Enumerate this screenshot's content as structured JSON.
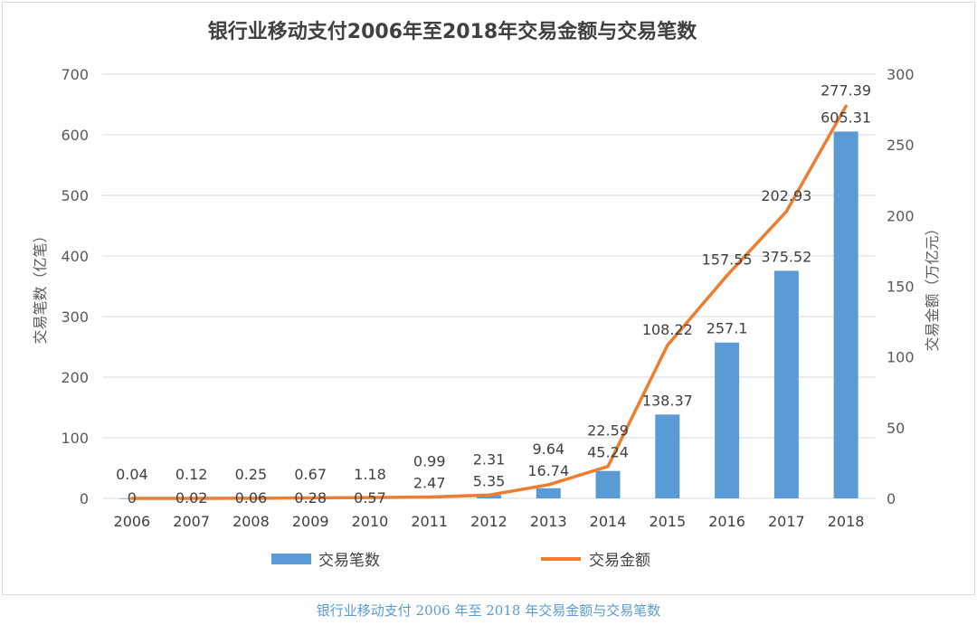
{
  "caption": "银行业移动支付 2006 年至 2018 年交易金额与交易笔数",
  "chart_data": {
    "type": "bar",
    "title": "银行业移动支付2006年至2018年交易金额与交易笔数",
    "categories": [
      "2006",
      "2007",
      "2008",
      "2009",
      "2010",
      "2011",
      "2012",
      "2013",
      "2014",
      "2015",
      "2016",
      "2017",
      "2018"
    ],
    "ylabel": "交易笔数（亿笔）",
    "y2label": "交易金额（万亿元）",
    "ylim": [
      0,
      700
    ],
    "y2lim": [
      0,
      300
    ],
    "yticks": [
      "0",
      "100",
      "200",
      "300",
      "400",
      "500",
      "600",
      "700"
    ],
    "y2ticks": [
      "0",
      "50",
      "100",
      "150",
      "200",
      "250",
      "300"
    ],
    "grid": true,
    "legend_position": "bottom",
    "series": [
      {
        "name": "交易笔数",
        "type": "bar",
        "axis": "left",
        "color": "#5b9bd5",
        "values": [
          0.04,
          0.12,
          0.25,
          0.67,
          1.18,
          2.47,
          5.35,
          16.74,
          45.24,
          138.37,
          257.1,
          375.52,
          605.31
        ],
        "labels": [
          "0.04",
          "0.12",
          "0.25",
          "0.67",
          "1.18",
          "2.47",
          "5.35",
          "16.74",
          "45.24",
          "138.37",
          "257.1",
          "375.52",
          "605.31"
        ]
      },
      {
        "name": "交易金额",
        "type": "line",
        "axis": "right",
        "color": "#ed7d31",
        "values": [
          0,
          0.02,
          0.06,
          0.28,
          0.57,
          0.99,
          2.31,
          9.64,
          22.59,
          108.22,
          157.55,
          202.93,
          277.39
        ],
        "labels": [
          "0",
          "0.02",
          "0.06",
          "0.28",
          "0.57",
          "0.99",
          "2.31",
          "9.64",
          "22.59",
          "108.22",
          "157.55",
          "202.93",
          "277.39"
        ]
      }
    ]
  }
}
